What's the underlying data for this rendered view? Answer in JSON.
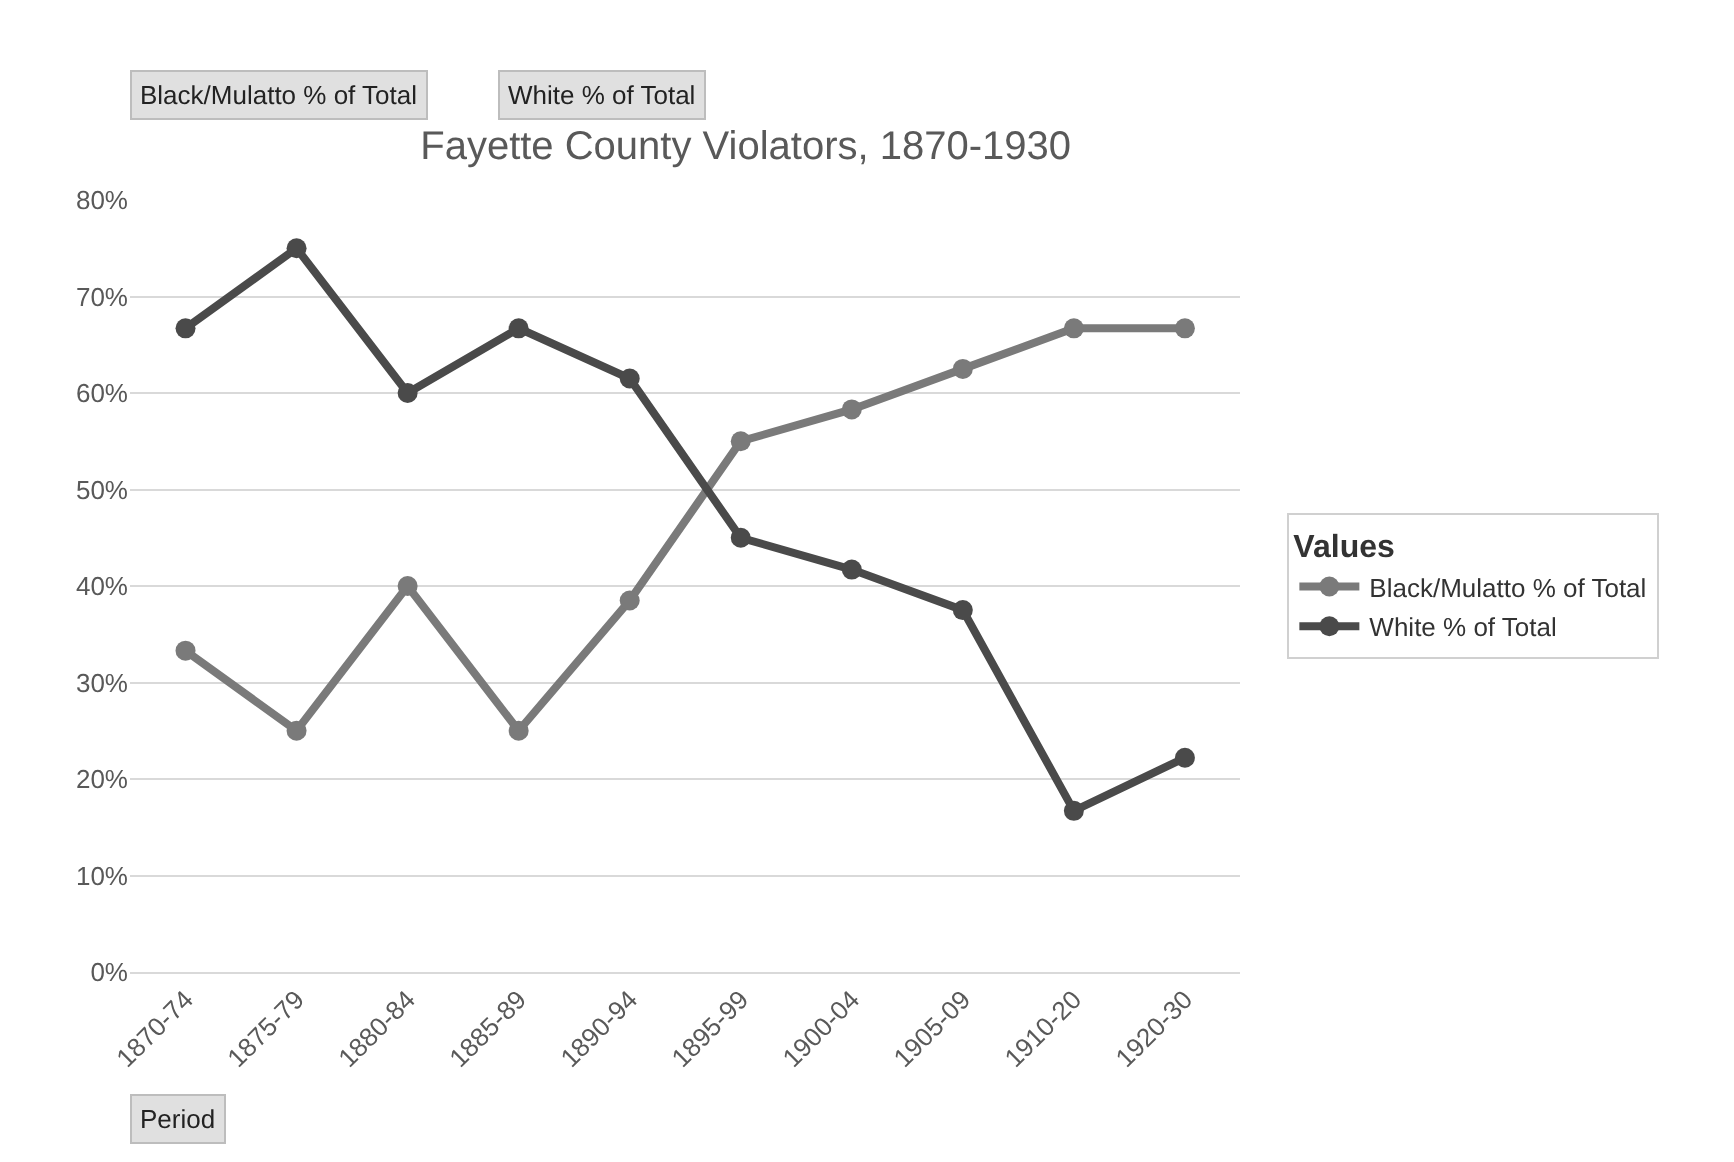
{
  "chart_data": {
    "type": "line",
    "title": "Fayette County Violators, 1870-1930",
    "legend_title": "Values",
    "categories": [
      "1870-74",
      "1875-79",
      "1880-84",
      "1885-89",
      "1890-94",
      "1895-99",
      "1900-04",
      "1905-09",
      "1910-20",
      "1920-30"
    ],
    "series": [
      {
        "name": "Black/Mulatto % of Total",
        "color": "#7a7a7a",
        "values": [
          33.3,
          25,
          40,
          25,
          38.5,
          55,
          58.3,
          62.5,
          66.7,
          66.7
        ]
      },
      {
        "name": "White % of Total",
        "color": "#4a4a4a",
        "values": [
          66.7,
          75,
          60,
          66.7,
          61.5,
          45,
          41.7,
          37.5,
          16.7,
          22.2
        ]
      }
    ],
    "ylim": [
      0,
      80
    ],
    "yticks": [
      {
        "value": 0,
        "label": "0%"
      },
      {
        "value": 10,
        "label": "10%"
      },
      {
        "value": 20,
        "label": "20%"
      },
      {
        "value": 30,
        "label": "30%"
      },
      {
        "value": 40,
        "label": "40%"
      },
      {
        "value": 50,
        "label": "50%"
      },
      {
        "value": 60,
        "label": "60%"
      },
      {
        "value": 70,
        "label": "70%"
      },
      {
        "value": 80,
        "label": "80%"
      }
    ],
    "grid": "y",
    "legend": "right",
    "marker": "circle",
    "line_style": "solid",
    "annotations": [
      "Black/Mulatto % of Total",
      "White % of Total",
      "Period"
    ]
  }
}
